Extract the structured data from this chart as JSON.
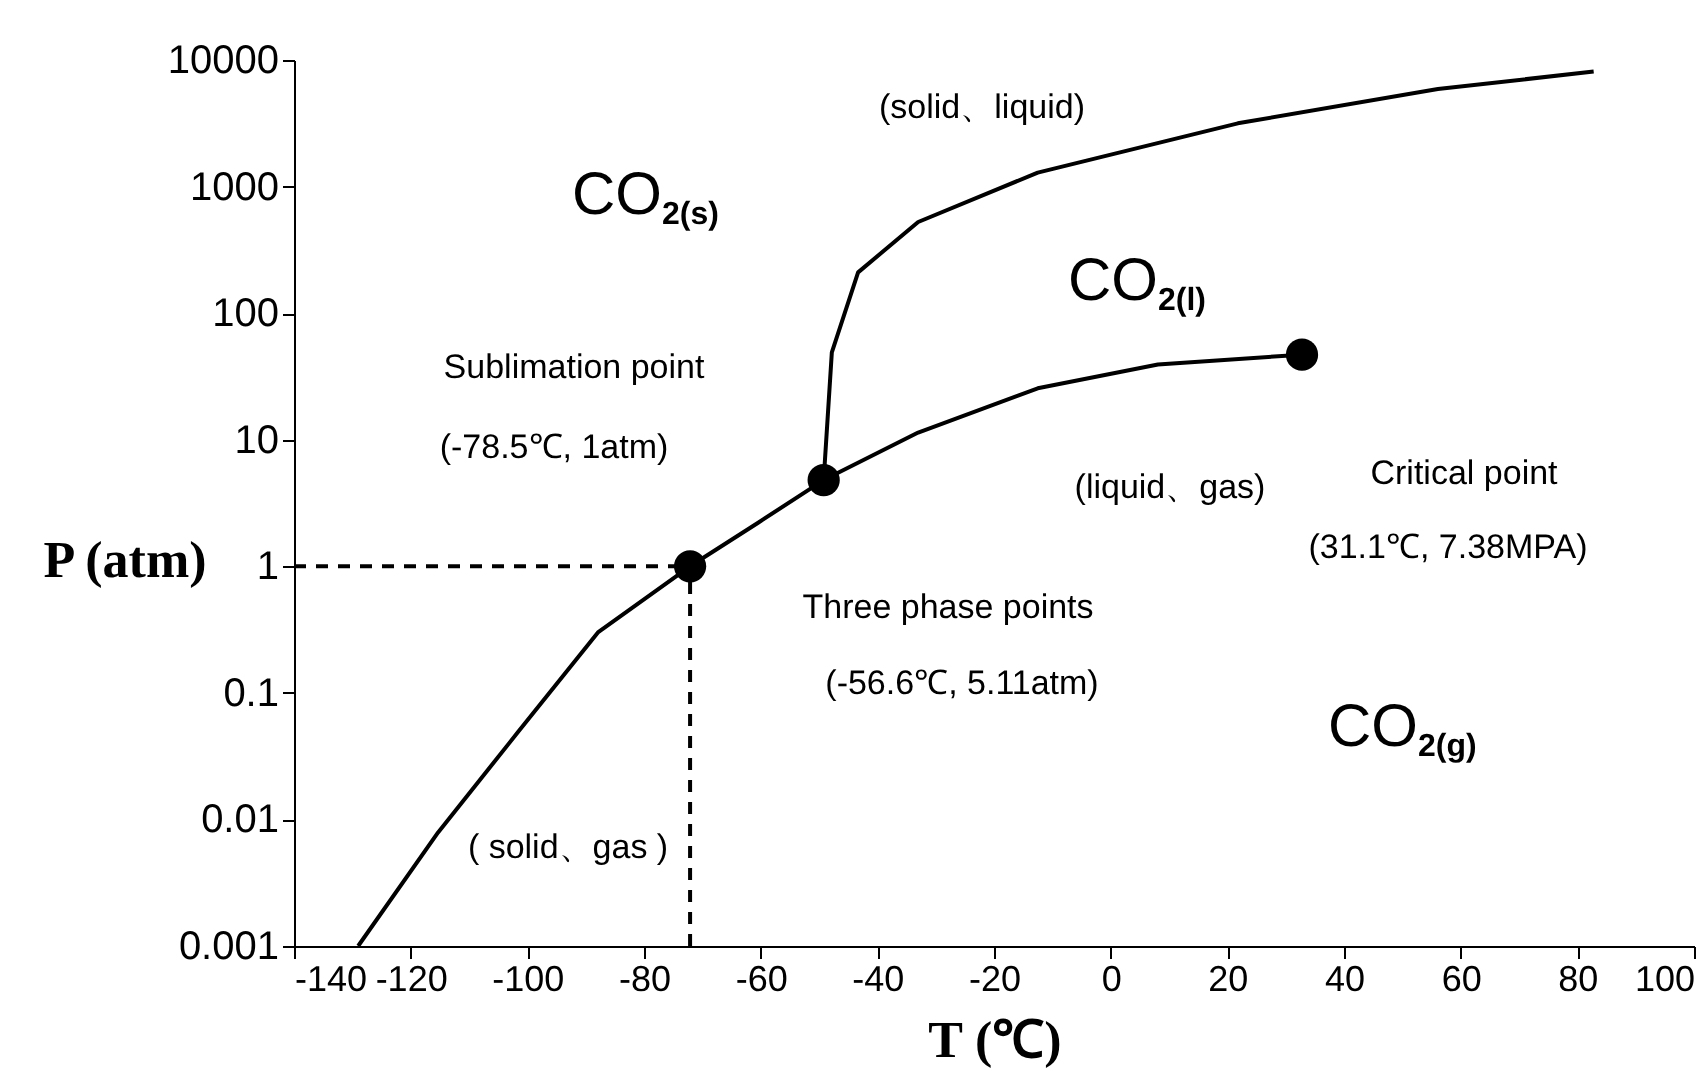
{
  "chart_data": {
    "type": "line",
    "xlabel": "T (℃)",
    "ylabel": "P (atm)",
    "log": "y",
    "grid": false,
    "xlim": [
      -140,
      100
    ],
    "xticks": [
      -140,
      -120,
      -100,
      -80,
      -60,
      -40,
      -20,
      0,
      20,
      40,
      60,
      80,
      100
    ],
    "ylim": [
      0.001,
      10000
    ],
    "yticks": [
      0.001,
      0.01,
      0.1,
      1,
      10,
      100,
      1000,
      10000
    ],
    "series": [
      {
        "color": "#000000",
        "line_style": "solid",
        "x": [
          -129,
          -115.3,
          -101.6,
          -87.9,
          -72.1,
          -60.5,
          -49.2
        ],
        "values": [
          0.001,
          0.0079,
          0.049,
          0.3,
          1,
          2.2,
          4.8
        ]
      },
      {
        "color": "#000000",
        "line_style": "solid",
        "x": [
          -49.2,
          -33,
          -12.5,
          8.1,
          32.8
        ],
        "values": [
          4.8,
          11.4,
          25.5,
          39.3,
          47
        ]
      },
      {
        "color": "#000000",
        "line_style": "solid",
        "x": [
          -49.2,
          -47.8,
          -43.3,
          -33,
          -12.5,
          21.8,
          56.1,
          82.8
        ],
        "values": [
          4.8,
          49,
          210,
          525,
          1290,
          3160,
          5900,
          8100
        ]
      },
      {
        "color": "#000000",
        "line_style": "dashed",
        "x": [
          -140,
          -72.1
        ],
        "values": [
          1,
          1
        ]
      },
      {
        "color": "#000000",
        "line_style": "dashed",
        "x": [
          -72.1,
          -72.1
        ],
        "values": [
          0.001,
          1
        ]
      },
      {
        "type": "scatter",
        "color": "#000000",
        "marker": "circle",
        "x": [
          -72.1,
          -49.2,
          32.8
        ],
        "values": [
          1,
          4.8,
          47
        ]
      }
    ],
    "annotations": [
      "CO$_{2(s)}$",
      "CO$_{2(l)}$",
      "CO$_{2(g)}$",
      "(solid、liquid)",
      "Sublimation point",
      "(-78.5℃, 1atm)",
      "(liquid、gas)",
      "Critical point",
      "(31.1℃, 7.38MPA)",
      "Three phase points",
      "(-56.6℃, 5.11atm)",
      "( solid、gas )"
    ]
  }
}
